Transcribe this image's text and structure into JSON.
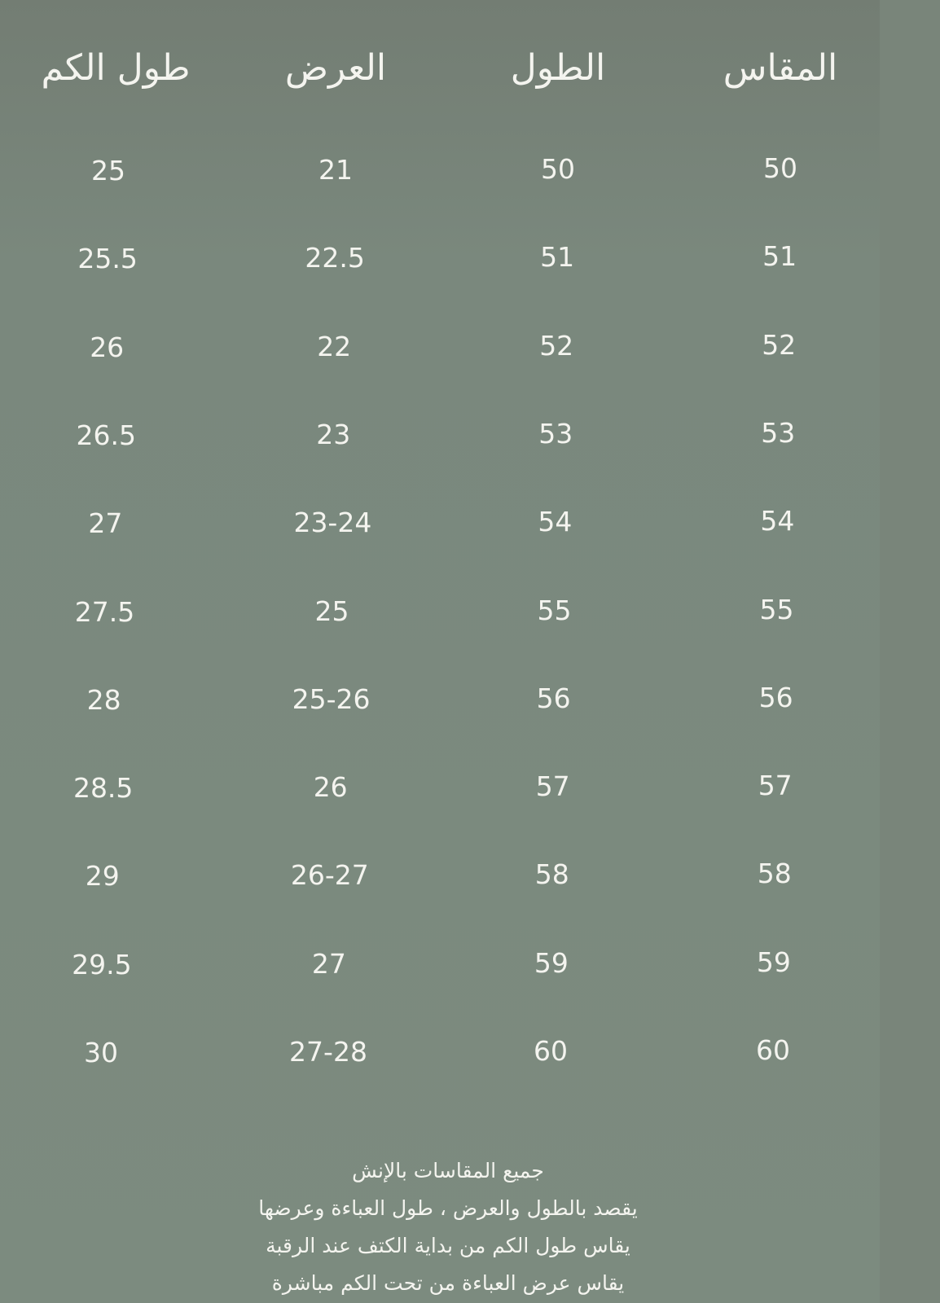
{
  "table": {
    "headers": [
      "المقاس",
      "الطول",
      "العرض",
      "طول الكم"
    ],
    "rows": [
      [
        "50",
        "50",
        "21",
        "25"
      ],
      [
        "51",
        "51",
        "22.5",
        "25.5"
      ],
      [
        "52",
        "52",
        "22",
        "26"
      ],
      [
        "53",
        "53",
        "23",
        "26.5"
      ],
      [
        "54",
        "54",
        "23-24",
        "27"
      ],
      [
        "55",
        "55",
        "25",
        "27.5"
      ],
      [
        "56",
        "56",
        "25-26",
        "28"
      ],
      [
        "57",
        "57",
        "26",
        "28.5"
      ],
      [
        "58",
        "58",
        "26-27",
        "29"
      ],
      [
        "59",
        "59",
        "27",
        "29.5"
      ],
      [
        "60",
        "60",
        "27-28",
        "30"
      ]
    ]
  },
  "notes": [
    "جميع المقاسات بالإنش",
    "يقصد بالطول والعرض ، طول العباءة وعرضها",
    "يقاس طول الكم من بداية الكتف عند الرقبة",
    "يقاس عرض العباءة من تحت الكم مباشرة"
  ],
  "colors": {
    "background": "#7a887d",
    "text": "#f4f4ef"
  }
}
